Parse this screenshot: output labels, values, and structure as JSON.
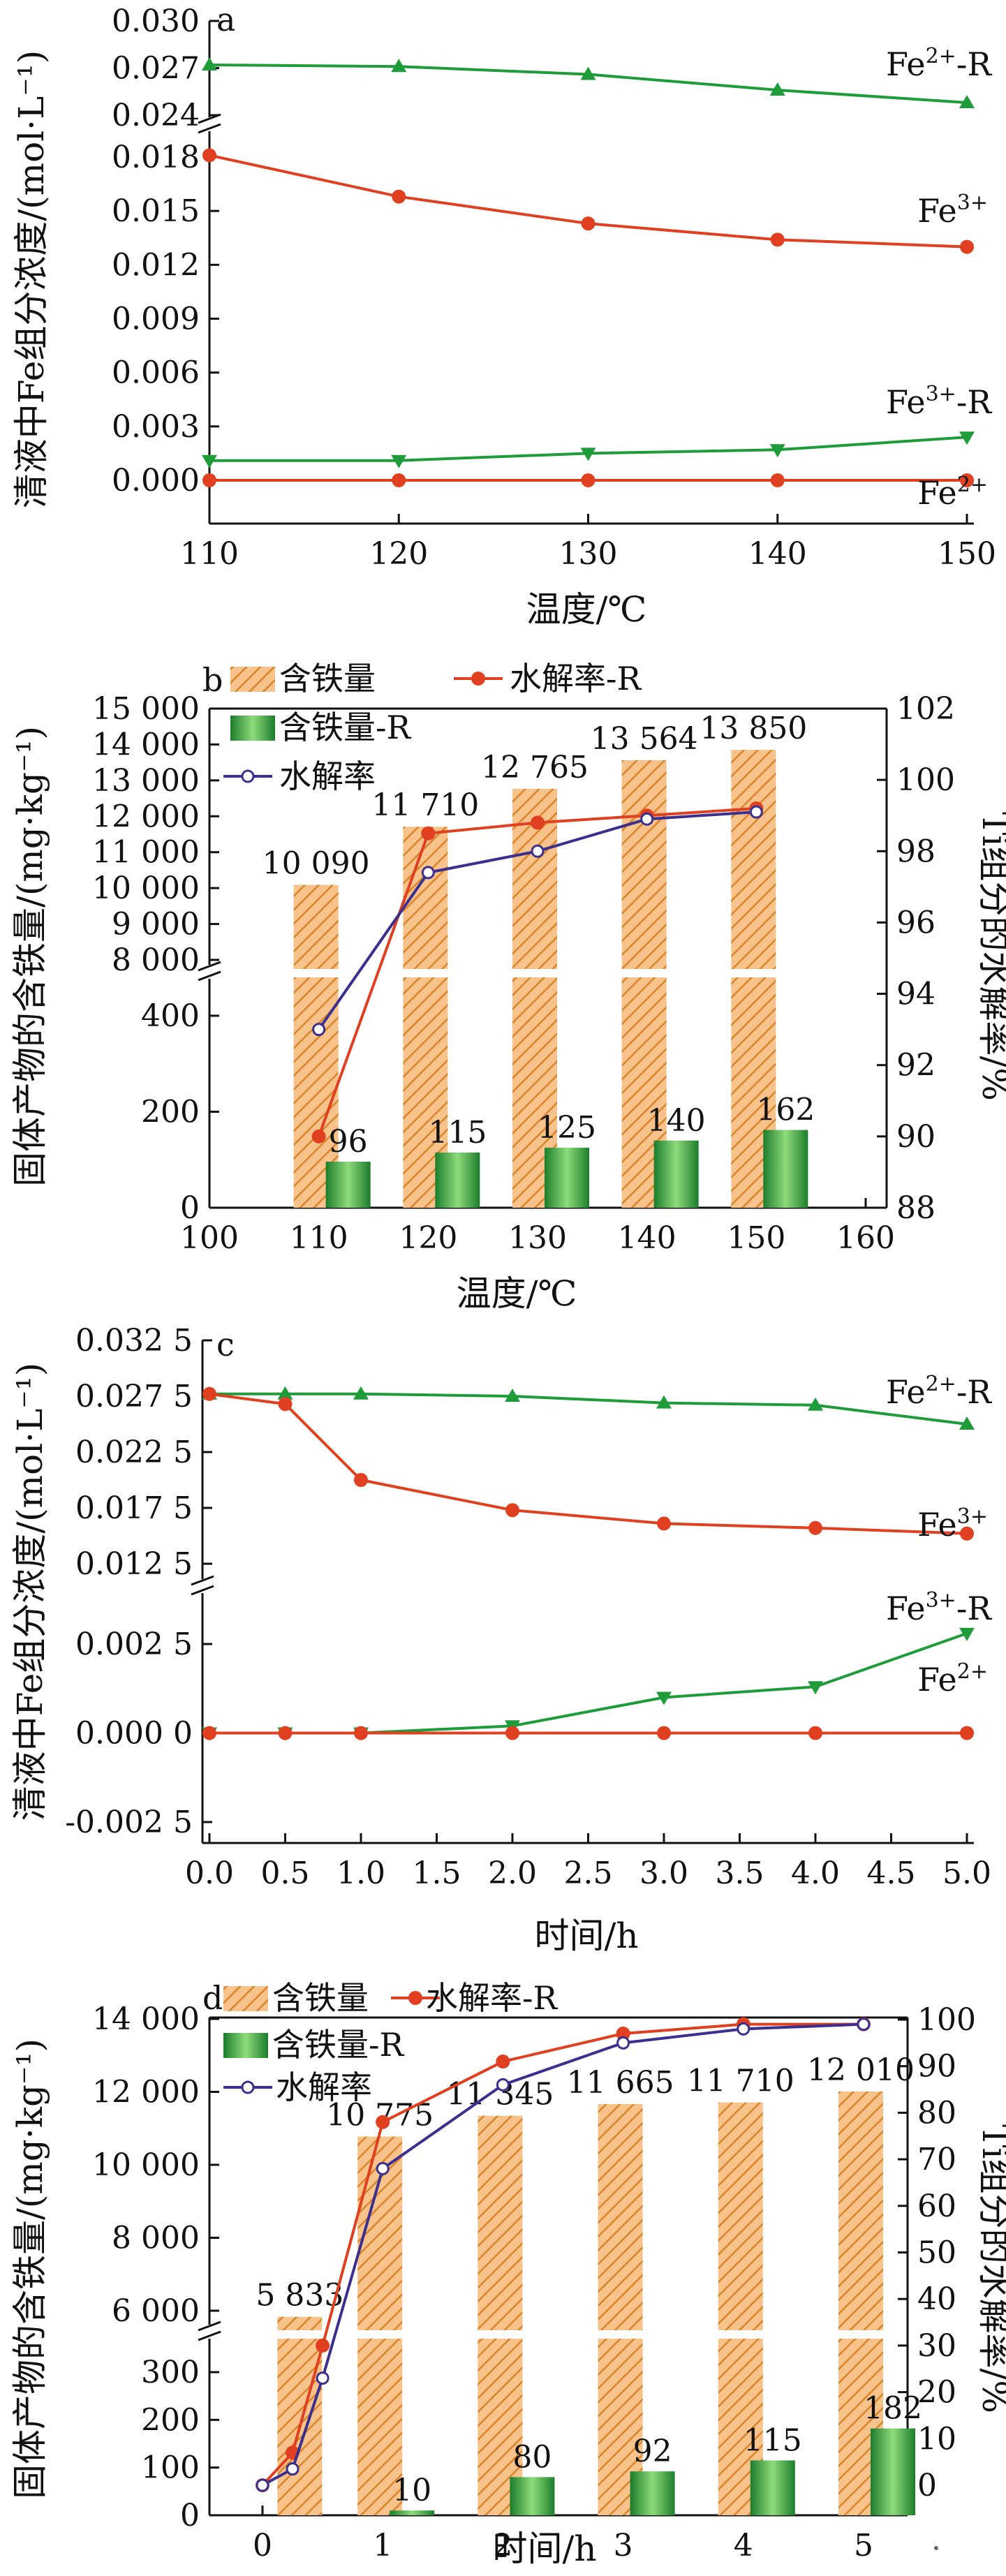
{
  "chart_data": [
    {
      "panel": "a",
      "type": "line",
      "x": [
        110,
        120,
        130,
        140,
        150
      ],
      "xlabel": "温度/℃",
      "ylabel": "清液中Fe组分浓度/(mol·L⁻¹)",
      "xlim": [
        108,
        153
      ],
      "x_ticks": [
        "110",
        "120",
        "130",
        "140",
        "150"
      ],
      "y_ticks_lower": [
        "0.000",
        "0.003",
        "0.006",
        "0.009",
        "0.012",
        "0.015",
        "0.018"
      ],
      "y_ticks_upper": [
        "0.024",
        "0.027",
        "0.030"
      ],
      "axis_break": [
        0.0195,
        0.0235
      ],
      "series": [
        {
          "name": "Fe²⁺-R",
          "color": "#1e9c3a",
          "marker": "triangle-up",
          "values": [
            0.0272,
            0.0271,
            0.0266,
            0.0256,
            0.0248
          ]
        },
        {
          "name": "Fe³⁺",
          "color": "#e0401f",
          "marker": "circle",
          "values": [
            0.0181,
            0.0158,
            0.0143,
            0.0134,
            0.013
          ]
        },
        {
          "name": "Fe³⁺-R",
          "color": "#1e9c3a",
          "marker": "triangle-down",
          "values": [
            0.0011,
            0.0011,
            0.0015,
            0.0017,
            0.0024
          ]
        },
        {
          "name": "Fe²⁺",
          "color": "#e0401f",
          "marker": "circle",
          "values": [
            0.0,
            0.0,
            0.0,
            0.0,
            0.0
          ]
        }
      ]
    },
    {
      "panel": "b",
      "type": "bar",
      "categories": [
        110,
        120,
        130,
        140,
        150
      ],
      "xlabel": "温度/℃",
      "ylabel_left": "固体产物的含铁量/(mg·kg⁻¹)",
      "ylabel_right": "Ti组分的水解率/%",
      "x_ticks": [
        "100",
        "110",
        "120",
        "130",
        "140",
        "150",
        "160"
      ],
      "y_left_ticks_lower": [
        "0",
        "200",
        "400"
      ],
      "y_left_ticks_upper": [
        "8 000",
        "9 000",
        "10 000",
        "11 000",
        "12 000",
        "13 000",
        "14 000",
        "15 000"
      ],
      "y_right_ticks": [
        "88",
        "90",
        "92",
        "94",
        "96",
        "98",
        "100",
        "102"
      ],
      "axis_break": [
        450,
        8000
      ],
      "bar_series": [
        {
          "name": "含铁量",
          "values": [
            10090,
            11710,
            12765,
            13564,
            13850
          ],
          "labels": [
            "10 090",
            "11 710",
            "12 765",
            "13 564",
            "13 850"
          ]
        },
        {
          "name": "含铁量-R",
          "values": [
            96,
            115,
            125,
            140,
            162
          ],
          "labels": [
            "96",
            "115",
            "125",
            "140",
            "162"
          ]
        }
      ],
      "line_series": [
        {
          "name": "水解率-R",
          "color": "#e0401f",
          "values": [
            90.0,
            98.5,
            98.8,
            99.0,
            99.2
          ]
        },
        {
          "name": "水解率",
          "color": "#3b2f8f",
          "values": [
            93.0,
            97.4,
            98.0,
            98.9,
            99.1
          ]
        }
      ]
    },
    {
      "panel": "c",
      "type": "line",
      "x": [
        0,
        0.5,
        1,
        2,
        3,
        4,
        5
      ],
      "xlabel": "时间/h",
      "ylabel": "清液中Fe组分浓度/(mol·L⁻¹)",
      "x_ticks": [
        "0.0",
        "0.5",
        "1.0",
        "1.5",
        "2.0",
        "2.5",
        "3.0",
        "3.5",
        "4.0",
        "4.5",
        "5.0"
      ],
      "y_ticks_lower": [
        "-0.002 5",
        "0.000 0",
        "0.002 5"
      ],
      "y_ticks_upper": [
        "0.012 5",
        "0.017 5",
        "0.022 5",
        "0.027 5",
        "0.032 5"
      ],
      "axis_break": [
        0.0032,
        0.0125
      ],
      "series": [
        {
          "name": "Fe²⁺-R",
          "color": "#1e9c3a",
          "marker": "triangle-up",
          "values": [
            0.0277,
            0.0277,
            0.0277,
            0.0275,
            0.0269,
            0.0267,
            0.025
          ]
        },
        {
          "name": "Fe³⁺",
          "color": "#e0401f",
          "marker": "circle",
          "values": [
            0.0277,
            0.0268,
            0.02,
            0.0173,
            0.0161,
            0.0157,
            0.0152
          ]
        },
        {
          "name": "Fe³⁺-R",
          "color": "#1e9c3a",
          "marker": "triangle-down",
          "values": [
            0.0,
            0.0,
            0.0,
            0.0002,
            0.001,
            0.0013,
            0.0028
          ]
        },
        {
          "name": "Fe²⁺",
          "color": "#e0401f",
          "marker": "circle",
          "values": [
            0.0,
            0.0,
            0.0,
            0.0,
            0.0,
            0.0,
            0.0
          ]
        }
      ]
    },
    {
      "panel": "d",
      "type": "bar",
      "categories": [
        0,
        1,
        2,
        3,
        4,
        5
      ],
      "xlabel": "时间/h",
      "ylabel_left": "固体产物的含铁量/(mg·kg⁻¹)",
      "ylabel_right": "Ti组分的水解率/%",
      "x_ticks": [
        "0",
        "1",
        "2",
        "3",
        "4",
        "5"
      ],
      "y_left_ticks_lower": [
        "0",
        "100",
        "200",
        "300"
      ],
      "y_left_ticks_upper": [
        "6 000",
        "8 000",
        "10 000",
        "12 000",
        "14 000"
      ],
      "y_right_ticks": [
        "0",
        "10",
        "20",
        "30",
        "40",
        "50",
        "60",
        "70",
        "80",
        "90",
        "100"
      ],
      "bar_positions": [
        0.333,
        1,
        2,
        3,
        4,
        5
      ],
      "bar_series": [
        {
          "name": "含铁量",
          "values": [
            5833,
            10775,
            11345,
            11665,
            11710,
            12010
          ],
          "labels": [
            "5 833",
            "10 775",
            "11 345",
            "11 665",
            "11 710",
            "12 010"
          ]
        },
        {
          "name": "含铁量-R",
          "values": [
            null,
            10,
            80,
            92,
            115,
            182
          ],
          "labels": [
            "",
            "10",
            "80",
            "92",
            "115",
            "182"
          ]
        }
      ],
      "line_x": [
        0,
        0.25,
        0.5,
        1,
        2,
        3,
        4,
        5
      ],
      "line_series": [
        {
          "name": "水解率-R",
          "color": "#e0401f",
          "values": [
            0,
            7,
            30,
            78,
            91,
            97,
            99,
            99
          ]
        },
        {
          "name": "水解率",
          "color": "#3b2f8f",
          "values": [
            0,
            3.5,
            23,
            68,
            86,
            95,
            98,
            99
          ]
        }
      ]
    }
  ]
}
